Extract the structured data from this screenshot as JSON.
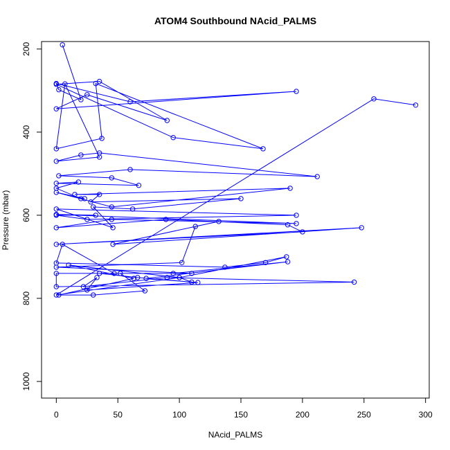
{
  "chart_data": {
    "type": "scatter",
    "title": "ATOM4 Southbound NAcid_PALMS",
    "xlabel": "NAcid_PALMS",
    "ylabel": "Pressure (mbar)",
    "xlim": [
      -12,
      303
    ],
    "ylim": [
      1040,
      182
    ],
    "y_reversed": true,
    "xticks": [
      0,
      50,
      100,
      150,
      200,
      250,
      300
    ],
    "yticks": [
      200,
      400,
      600,
      800,
      1000
    ],
    "grid": false,
    "legend": "none",
    "color": "#0000ff",
    "marker": "open-circle",
    "connected": true,
    "series": [
      {
        "x": [
          5,
          20,
          2,
          0,
          60,
          195,
          0,
          25,
          90,
          35,
          0,
          95,
          168,
          32,
          37,
          0,
          7,
          35,
          0,
          20,
          35,
          212,
          60,
          2,
          45,
          67,
          0,
          18,
          0,
          20,
          23,
          0,
          45,
          190,
          15,
          35,
          28,
          150,
          62,
          30,
          46,
          0,
          195,
          25,
          0,
          32,
          0,
          195,
          45,
          0,
          89,
          188,
          200,
          0,
          248,
          46,
          132,
          113,
          102,
          0,
          110,
          47,
          5,
          0,
          137,
          170,
          187,
          100,
          110,
          73,
          188,
          95,
          0,
          0,
          242,
          90,
          22,
          33,
          25,
          115,
          66,
          35,
          52,
          72,
          30,
          2,
          63,
          10,
          100,
          0,
          258,
          292
        ],
        "y": [
          190,
          322,
          298,
          283,
          327,
          302,
          344,
          310,
          372,
          278,
          285,
          413,
          440,
          283,
          415,
          440,
          284,
          460,
          470,
          455,
          450,
          507,
          490,
          505,
          510,
          528,
          523,
          520,
          535,
          560,
          560,
          545,
          580,
          535,
          550,
          550,
          568,
          560,
          585,
          580,
          630,
          585,
          600,
          610,
          600,
          600,
          598,
          620,
          610,
          630,
          610,
          623,
          640,
          670,
          630,
          670,
          615,
          627,
          714,
          725,
          740,
          740,
          670,
          715,
          725,
          714,
          700,
          750,
          761,
          752,
          712,
          740,
          740,
          772,
          761,
          750,
          772,
          750,
          780,
          762,
          750,
          740,
          740,
          782,
          792,
          792,
          752,
          720,
          750,
          792,
          320,
          335
        ]
      }
    ]
  }
}
